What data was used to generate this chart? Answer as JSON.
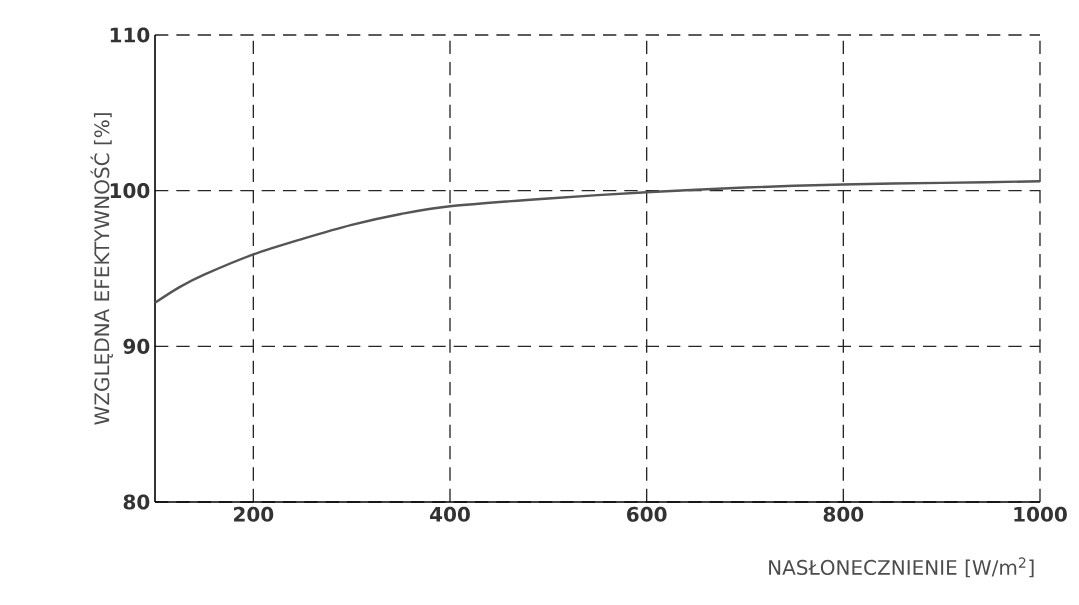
{
  "chart_data": {
    "type": "line",
    "xlabel": "NASŁONECZNIENIE [W/m$^{2}$]",
    "ylabel": "WZGLĘDNA EFEKTYWNOŚĆ [%]",
    "x": [
      100,
      125,
      150,
      200,
      250,
      300,
      350,
      400,
      500,
      600,
      700,
      800,
      900,
      1000
    ],
    "series": [
      {
        "color": "#555555",
        "values": [
          92.8,
          93.8,
          94.6,
          95.9,
          96.9,
          97.8,
          98.5,
          99.0,
          99.5,
          99.9,
          100.2,
          100.4,
          100.5,
          100.6
        ]
      }
    ],
    "xlim": [
      100,
      1000
    ],
    "ylim": [
      80,
      110
    ],
    "xticks": [
      200,
      400,
      600,
      800,
      1000
    ],
    "yticks": [
      80,
      90,
      100,
      110
    ],
    "grid": true,
    "marker": "none",
    "line_style": "solid"
  }
}
